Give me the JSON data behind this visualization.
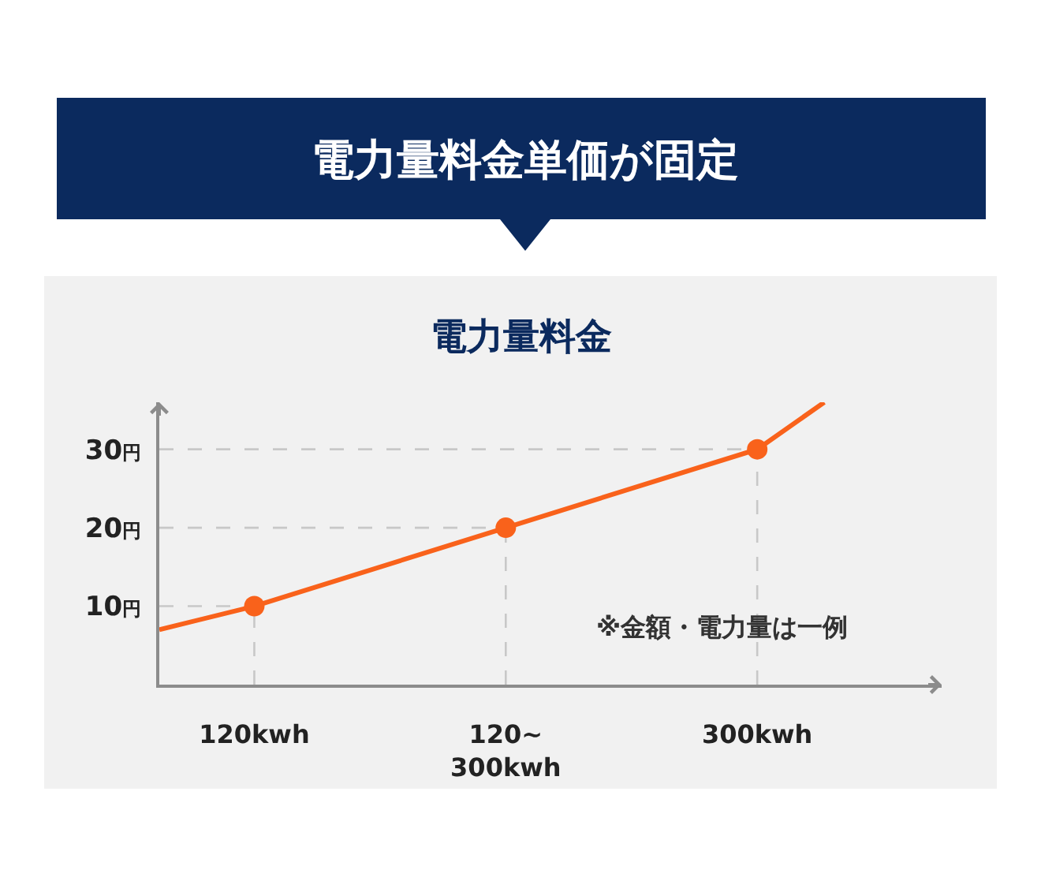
{
  "chart_data": {
    "type": "line",
    "title": "電力量料金単価が固定",
    "subtitle": "電力量料金",
    "annotations": [
      "※金額・電力量は一例"
    ],
    "xlim": [
      86,
      366
    ],
    "xticks": [
      {
        "value": 120,
        "label": "120kwh"
      },
      {
        "value": 210,
        "label": "120~\n300kwh"
      },
      {
        "value": 300,
        "label": "300kwh"
      }
    ],
    "ylim": [
      0,
      36
    ],
    "yticks": [
      {
        "value": 10,
        "label": "10円"
      },
      {
        "value": 20,
        "label": "20円"
      },
      {
        "value": 30,
        "label": "30円"
      }
    ],
    "series": [
      {
        "color": "#f9621b",
        "x": [
          86,
          120,
          210,
          300,
          324
        ],
        "values": [
          7,
          10,
          20,
          30,
          36
        ]
      },
      {
        "type": "scatter",
        "color": "#f9621b",
        "x": [
          120,
          210,
          300
        ],
        "values": [
          10,
          20,
          30
        ]
      }
    ],
    "ref_lines": [
      {
        "axis": "y",
        "value": 10,
        "color": "#c8c8c8",
        "line_style": "dashed"
      },
      {
        "axis": "y",
        "value": 20,
        "color": "#c8c8c8",
        "line_style": "dashed"
      },
      {
        "axis": "y",
        "value": 30,
        "color": "#c8c8c8",
        "line_style": "dashed"
      },
      {
        "axis": "x",
        "value": 120,
        "color": "#c8c8c8",
        "line_style": "dashed"
      },
      {
        "axis": "x",
        "value": 210,
        "color": "#c8c8c8",
        "line_style": "dashed"
      },
      {
        "axis": "x",
        "value": 300,
        "color": "#c8c8c8",
        "line_style": "dashed"
      }
    ]
  }
}
